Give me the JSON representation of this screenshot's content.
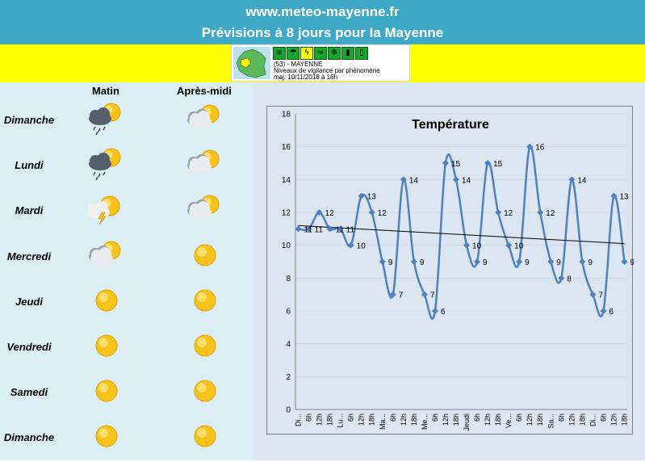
{
  "header": {
    "site_url": "www.meteo-mayenne.fr",
    "title": "Prévisions à 8 jours pour la Mayenne"
  },
  "vigilance": {
    "department": "(53) - MAYENNE",
    "subtitle": "Niveaux de vigilance par phénomène",
    "updated": "maj: 10/11/2018 à 16h",
    "icons": [
      "wind-icon",
      "rain-icon",
      "storm-icon",
      "flood-icon",
      "snow-icon",
      "heat-icon",
      "cold-icon"
    ]
  },
  "columns": {
    "morning": "Matin",
    "afternoon": "Après-midi"
  },
  "days": [
    {
      "name": "Dimanche",
      "am": "rain-cloud-sun",
      "pm": "cloud-sun"
    },
    {
      "name": "Lundi",
      "am": "rain-cloud-sun",
      "pm": "cloud-sun"
    },
    {
      "name": "Mardi",
      "am": "storm-sun",
      "pm": "cloud-sun"
    },
    {
      "name": "Mercredi",
      "am": "cloud-sun",
      "pm": "sun"
    },
    {
      "name": "Jeudi",
      "am": "sun",
      "pm": "sun"
    },
    {
      "name": "Vendredi",
      "am": "sun",
      "pm": "sun"
    },
    {
      "name": "Samedi",
      "am": "sun",
      "pm": "sun"
    },
    {
      "name": "Dimanche",
      "am": "sun",
      "pm": "sun"
    }
  ],
  "colors": {
    "header": "#3da9c6",
    "band": "#ffff00",
    "line": "#4f81bd",
    "sun": "#f7c21a"
  },
  "chart_data": {
    "type": "line",
    "title": "Température",
    "categories": [
      "Di...",
      "6h",
      "12h",
      "18h",
      "Lu...",
      "6h",
      "12h",
      "18h",
      "Ma...",
      "6h",
      "12h",
      "18h",
      "Me...",
      "6h",
      "12h",
      "18h",
      "Jeudi",
      "6h",
      "12h",
      "18h",
      "Ve...",
      "6h",
      "12h",
      "18h",
      "Sa...",
      "6h",
      "12h",
      "18h",
      "Di...",
      "6h",
      "12h",
      "18h"
    ],
    "values": [
      11,
      11,
      12,
      11,
      11,
      10,
      13,
      12,
      9,
      7,
      14,
      9,
      7,
      6,
      15,
      14,
      10,
      9,
      15,
      12,
      10,
      9,
      16,
      12,
      9,
      8,
      14,
      9,
      7,
      6,
      13,
      9
    ],
    "data_labels": [
      "11",
      "11",
      "12",
      "11",
      "11",
      "10",
      "13",
      "12",
      "9",
      "7",
      "14",
      "9",
      "7",
      "6",
      "15",
      "14",
      "10",
      "9",
      "15",
      "12",
      "10",
      "9",
      "16",
      "12",
      "9",
      "8",
      "14",
      "9",
      "7",
      "6",
      "13",
      "9"
    ],
    "yticks": [
      "0",
      "2",
      "4",
      "6",
      "8",
      "10",
      "12",
      "14",
      "16",
      "18"
    ],
    "ylim": [
      0,
      18
    ],
    "trendline": {
      "start": 11.2,
      "end": 10.1
    },
    "legend": "none"
  }
}
